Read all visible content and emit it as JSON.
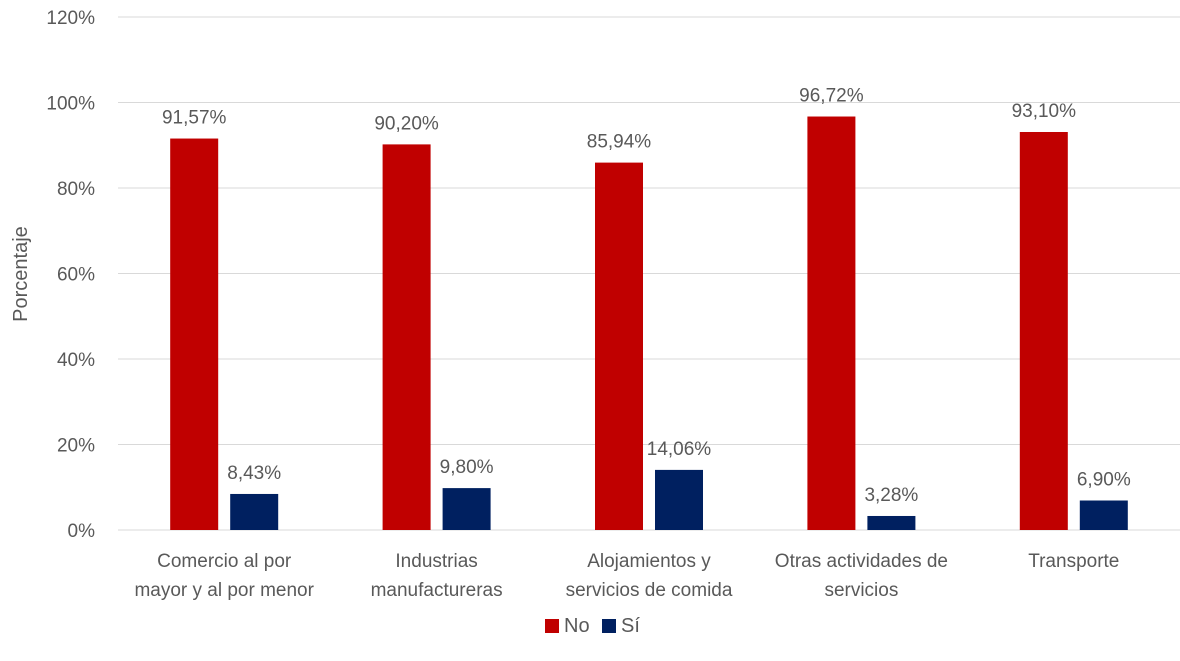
{
  "chart_data": {
    "type": "bar",
    "ylabel": "Porcentaje",
    "xlabel": "",
    "ylim": [
      0,
      120
    ],
    "yticks": [
      "0%",
      "20%",
      "40%",
      "60%",
      "80%",
      "100%",
      "120%"
    ],
    "ytick_values": [
      0,
      20,
      40,
      60,
      80,
      100,
      120
    ],
    "grid": true,
    "legend_position": "bottom",
    "categories": [
      [
        "Comercio al por",
        "mayor y al por menor"
      ],
      [
        "Industrias",
        "manufactureras"
      ],
      [
        "Alojamientos y",
        "servicios de comida"
      ],
      [
        "Otras actividades de",
        "servicios"
      ],
      [
        "Transporte"
      ]
    ],
    "series": [
      {
        "name": "No",
        "color": "#C00000",
        "values": [
          91.57,
          90.2,
          85.94,
          96.72,
          93.1
        ],
        "labels": [
          "91,57%",
          "90,20%",
          "85,94%",
          "96,72%",
          "93,10%"
        ]
      },
      {
        "name": "Sí",
        "color": "#002060",
        "values": [
          8.43,
          9.8,
          14.06,
          3.28,
          6.9
        ],
        "labels": [
          "8,43%",
          "9,80%",
          "14,06%",
          "3,28%",
          "6,90%"
        ]
      }
    ]
  }
}
